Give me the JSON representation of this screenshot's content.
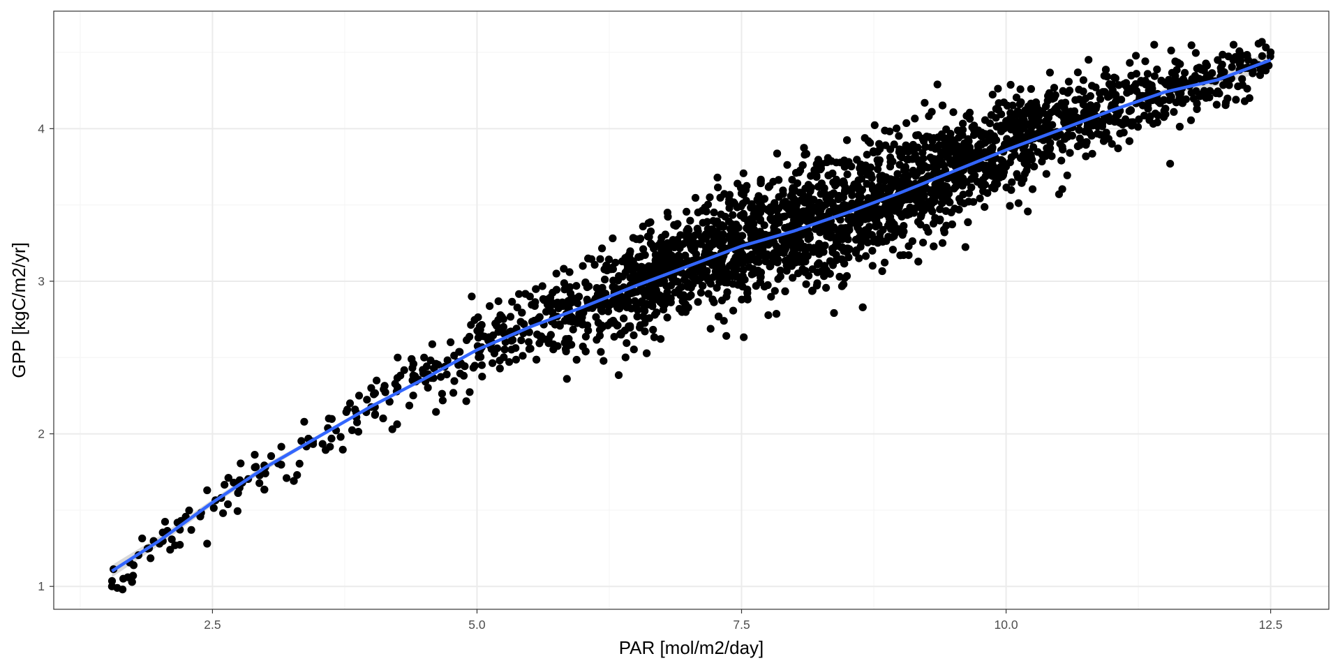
{
  "colors": {
    "background": "#ffffff",
    "panel_border": "#333333",
    "grid_major": "#ebebeb",
    "grid_minor": "#f5f5f5",
    "points": "#000000",
    "smooth_line": "#3366ff",
    "ribbon": "#bfbfbf"
  },
  "chart_data": {
    "type": "scatter",
    "title": "",
    "xlabel": "PAR [mol/m2/day]",
    "ylabel": "GPP [kgC/m2/yr]",
    "xlim": [
      1.0,
      13.05
    ],
    "ylim": [
      0.85,
      4.77
    ],
    "x_ticks": [
      2.5,
      5.0,
      7.5,
      10.0,
      12.5
    ],
    "x_tick_labels": [
      "2.5",
      "5.0",
      "7.5",
      "10.0",
      "12.5"
    ],
    "y_ticks": [
      1,
      2,
      3,
      4
    ],
    "y_tick_labels": [
      "1",
      "2",
      "3",
      "4"
    ],
    "grid": true,
    "legend": "none",
    "point_cloud": {
      "count": 3000,
      "x_range": [
        1.55,
        12.5
      ],
      "description_of_trend": "GPP rises with PAR, concave, scatter widening mid-range"
    },
    "series": [
      {
        "kind": "points",
        "x": [
          1.55,
          1.6,
          1.65,
          1.7,
          1.75,
          1.9,
          2.0,
          2.1,
          2.3,
          2.45,
          2.45,
          2.6,
          2.7,
          2.9,
          3.0,
          3.2,
          3.3,
          3.45,
          3.6,
          3.8,
          4.0,
          4.2,
          4.25,
          4.5,
          4.75,
          4.95,
          5.25,
          5.5,
          5.75,
          5.85,
          6.0,
          6.5,
          6.8,
          7.0,
          7.2,
          7.5,
          7.8,
          8.0,
          8.5,
          8.8,
          9.0,
          9.2,
          9.5,
          10.0,
          10.5,
          10.6,
          11.0,
          11.4,
          11.55,
          12.0,
          12.15,
          12.3,
          12.5
        ],
        "y": [
          1.0,
          0.99,
          0.98,
          1.06,
          1.07,
          1.25,
          1.28,
          1.24,
          1.37,
          1.28,
          1.63,
          1.48,
          1.68,
          1.78,
          1.74,
          1.71,
          1.73,
          1.95,
          2.1,
          2.2,
          2.3,
          2.03,
          2.5,
          2.5,
          2.6,
          2.9,
          2.7,
          2.9,
          3.05,
          2.36,
          3.1,
          3.1,
          3.45,
          3.3,
          3.55,
          3.25,
          3.3,
          3.6,
          3.7,
          3.9,
          3.17,
          3.55,
          3.9,
          4.05,
          3.57,
          4.25,
          3.9,
          4.55,
          3.77,
          4.45,
          4.55,
          4.2,
          4.5
        ]
      },
      {
        "kind": "smooth",
        "x": [
          1.55,
          2.0,
          2.5,
          3.0,
          3.5,
          4.0,
          4.5,
          5.0,
          5.5,
          6.0,
          6.5,
          7.0,
          7.5,
          8.0,
          8.5,
          9.0,
          9.5,
          10.0,
          10.5,
          11.0,
          11.5,
          12.0,
          12.5
        ],
        "y": [
          1.1,
          1.3,
          1.55,
          1.78,
          1.98,
          2.18,
          2.36,
          2.55,
          2.7,
          2.83,
          2.97,
          3.1,
          3.23,
          3.33,
          3.45,
          3.58,
          3.72,
          3.86,
          3.99,
          4.12,
          4.24,
          4.32,
          4.45
        ],
        "ci_low": [
          1.06,
          1.27,
          1.53,
          1.76,
          1.97,
          2.17,
          2.35,
          2.54,
          2.69,
          2.82,
          2.96,
          3.09,
          3.22,
          3.32,
          3.44,
          3.57,
          3.71,
          3.85,
          3.98,
          4.11,
          4.22,
          4.28,
          4.39
        ],
        "ci_high": [
          1.14,
          1.33,
          1.57,
          1.8,
          1.99,
          2.19,
          2.37,
          2.56,
          2.71,
          2.84,
          2.98,
          3.11,
          3.24,
          3.34,
          3.46,
          3.59,
          3.73,
          3.87,
          4.0,
          4.13,
          4.26,
          4.36,
          4.51
        ]
      }
    ]
  }
}
